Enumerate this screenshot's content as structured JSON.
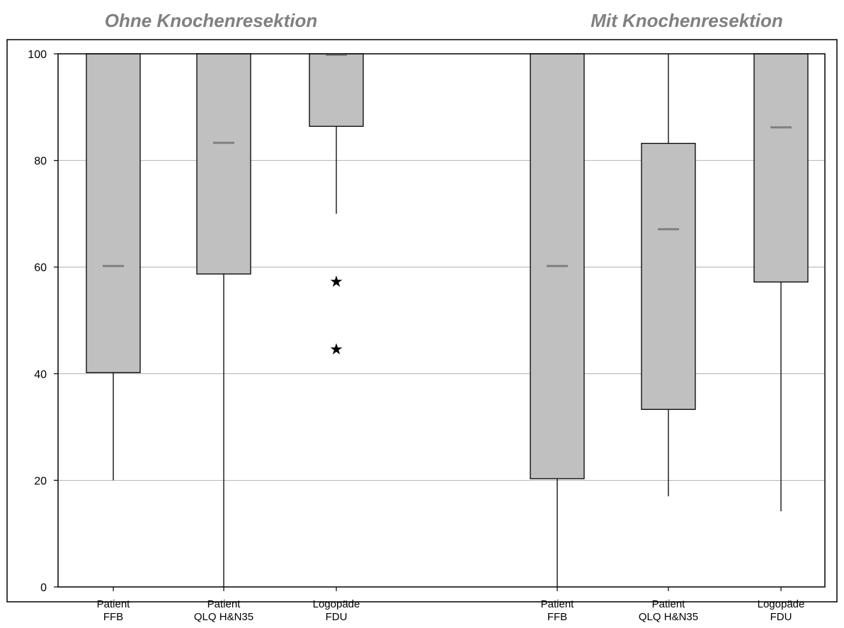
{
  "chart_data": {
    "type": "box",
    "groups": [
      {
        "title": "Ohne Knochenresektion"
      },
      {
        "title": "Mit Knochenresektion"
      }
    ],
    "ylim": [
      0,
      100
    ],
    "yticks": [
      "0",
      "20",
      "40",
      "60",
      "80",
      "100"
    ],
    "grid": true,
    "boxes": [
      {
        "group": 0,
        "label_line1": "Patient",
        "label_line2": "FFB",
        "whisker_low": 20,
        "q1": 40.2,
        "median": 60.2,
        "q3": 100,
        "whisker_high": 100,
        "outliers": []
      },
      {
        "group": 0,
        "label_line1": "Patient",
        "label_line2": "QLQ H&N35",
        "whisker_low": 0,
        "q1": 58.7,
        "median": 83.3,
        "q3": 100,
        "whisker_high": 100,
        "outliers": []
      },
      {
        "group": 0,
        "label_line1": "Logopäde",
        "label_line2": "FDU",
        "whisker_low": 70,
        "q1": 86.4,
        "median": 100,
        "q3": 100,
        "whisker_high": 100,
        "outliers": [
          57.5,
          44.8
        ]
      },
      {
        "group": 1,
        "label_line1": "Patient",
        "label_line2": "FFB",
        "whisker_low": 0,
        "q1": 20.3,
        "median": 60.2,
        "q3": 100,
        "whisker_high": 100,
        "outliers": []
      },
      {
        "group": 1,
        "label_line1": "Patient",
        "label_line2": "QLQ H&N35",
        "whisker_low": 17,
        "q1": 33.3,
        "median": 67.1,
        "q3": 83.2,
        "whisker_high": 100,
        "outliers": []
      },
      {
        "group": 1,
        "label_line1": "Logopäde",
        "label_line2": "FDU",
        "whisker_low": 14.2,
        "q1": 57.2,
        "median": 86.2,
        "q3": 100,
        "whisker_high": 100,
        "outliers": []
      }
    ],
    "colors": {
      "box_fill": "#c0c0c0",
      "median": "#808080",
      "grid": "#a0a0a0",
      "title": "#808080"
    }
  }
}
